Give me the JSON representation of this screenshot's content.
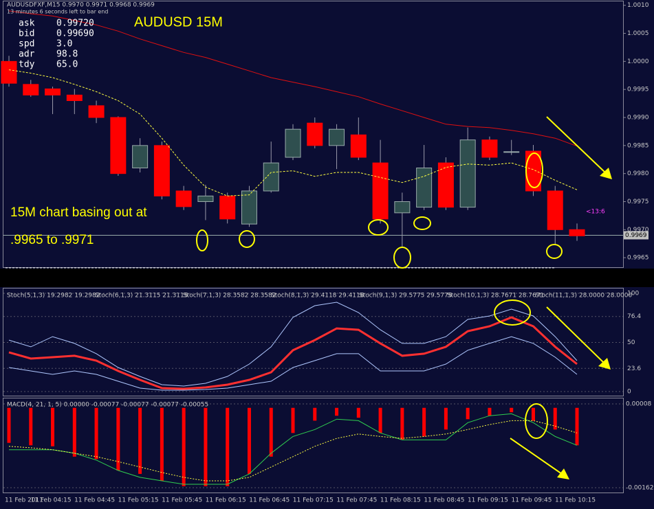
{
  "header": {
    "symbol_line": "AUDUSDFXF,M15  0.9970 0.9971 0.9968 0.9969",
    "timer": "13 minutes 6 seconds left to bar end"
  },
  "info": [
    {
      "label": "ask",
      "value": "0.99720"
    },
    {
      "label": "bid",
      "value": "0.99690"
    },
    {
      "label": "spd",
      "value": "3.0"
    },
    {
      "label": "adr",
      "value": "98.8"
    },
    {
      "label": "tdy",
      "value": "65.0"
    }
  ],
  "annotations": {
    "title": "AUDUSD 15M",
    "note_line1": "15M chart basing out at",
    "note_line2": ".9965 to .9971",
    "countdown": "<13:6"
  },
  "price_panel": {
    "ylim": [
      0.99622,
      1.00107
    ],
    "yticks": [
      {
        "value": 1.001,
        "label": "1.0010"
      },
      1.0005,
      {
        "value": 1.0,
        "label": "1.0000"
      },
      0.9995,
      {
        "value": 0.999,
        "label": "0.9990"
      },
      0.9985,
      {
        "value": 0.998,
        "label": "0.9980"
      },
      0.9975,
      {
        "value": 0.997,
        "label": "0.9970"
      },
      0.9965
    ],
    "current_price": {
      "value": 0.9969,
      "label": "0.9969"
    },
    "level": 0.99632,
    "candles": [
      {
        "open": 1.0,
        "high": 1.0001,
        "low": 0.99955,
        "close": 0.99961
      },
      {
        "open": 0.99959,
        "high": 0.99967,
        "low": 0.99937,
        "close": 0.9994
      },
      {
        "open": 0.99951,
        "high": 0.99955,
        "low": 0.99906,
        "close": 0.9994
      },
      {
        "open": 0.9994,
        "high": 0.99951,
        "low": 0.99906,
        "close": 0.9993
      },
      {
        "open": 0.99921,
        "high": 0.9993,
        "low": 0.9989,
        "close": 0.999
      },
      {
        "open": 0.999,
        "high": 0.99902,
        "low": 0.99796,
        "close": 0.998
      },
      {
        "open": 0.9981,
        "high": 0.99863,
        "low": 0.99802,
        "close": 0.9985
      },
      {
        "open": 0.9985,
        "high": 0.99857,
        "low": 0.99754,
        "close": 0.9976
      },
      {
        "open": 0.99769,
        "high": 0.99778,
        "low": 0.99735,
        "close": 0.99741
      },
      {
        "open": 0.9975,
        "high": 0.9978,
        "low": 0.99717,
        "close": 0.9976
      },
      {
        "open": 0.9976,
        "high": 0.99766,
        "low": 0.99711,
        "close": 0.99719
      },
      {
        "open": 0.9971,
        "high": 0.99778,
        "low": 0.99705,
        "close": 0.99769
      },
      {
        "open": 0.99769,
        "high": 0.99857,
        "low": 0.99766,
        "close": 0.99819
      },
      {
        "open": 0.99829,
        "high": 0.99888,
        "low": 0.99824,
        "close": 0.99879
      },
      {
        "open": 0.9989,
        "high": 0.999,
        "low": 0.99845,
        "close": 0.9985
      },
      {
        "open": 0.9985,
        "high": 0.99888,
        "low": 0.99808,
        "close": 0.99879
      },
      {
        "open": 0.99869,
        "high": 0.999,
        "low": 0.99824,
        "close": 0.99829
      },
      {
        "open": 0.99819,
        "high": 0.9986,
        "low": 0.99711,
        "close": 0.99719
      },
      {
        "open": 0.9973,
        "high": 0.99766,
        "low": 0.99668,
        "close": 0.9975
      },
      {
        "open": 0.9974,
        "high": 0.99851,
        "low": 0.99735,
        "close": 0.9981
      },
      {
        "open": 0.99819,
        "high": 0.99829,
        "low": 0.99735,
        "close": 0.9974
      },
      {
        "open": 0.9974,
        "high": 0.99882,
        "low": 0.99735,
        "close": 0.9986
      },
      {
        "open": 0.9986,
        "high": 0.99866,
        "low": 0.99824,
        "close": 0.99829
      },
      {
        "open": 0.99839,
        "high": 0.9986,
        "low": 0.99833,
        "close": 0.99839
      },
      {
        "open": 0.9984,
        "high": 0.99851,
        "low": 0.9976,
        "close": 0.99769
      },
      {
        "open": 0.99769,
        "high": 0.99778,
        "low": 0.99674,
        "close": 0.997
      },
      {
        "open": 0.997,
        "high": 0.99711,
        "low": 0.9968,
        "close": 0.99689
      }
    ],
    "up_color": "#2f4f4f",
    "down_color": "#ff0000",
    "lines": [
      {
        "color": "#e01010",
        "dash": "",
        "values": [
          1.0009,
          1.00085,
          1.00081,
          1.00073,
          1.00065,
          1.00054,
          1.0004,
          1.00028,
          1.00016,
          1.00007,
          0.99995,
          0.99983,
          0.99971,
          0.99963,
          0.99955,
          0.99946,
          0.99937,
          0.99924,
          0.99912,
          0.999,
          0.99888,
          0.99884,
          0.99882,
          0.99877,
          0.99871,
          0.99863,
          0.99849
        ]
      },
      {
        "color": "#ffff40",
        "dash": "3 2",
        "values": [
          0.99985,
          0.99979,
          0.99971,
          0.99959,
          0.99946,
          0.9993,
          0.99906,
          0.99863,
          0.99815,
          0.99776,
          0.9976,
          0.99762,
          0.99802,
          0.99805,
          0.99795,
          0.99802,
          0.99802,
          0.99793,
          0.99784,
          0.99795,
          0.99811,
          0.99817,
          0.99815,
          0.99819,
          0.99807,
          0.99788,
          0.99771
        ]
      }
    ]
  },
  "stoch_panel": {
    "labels": [
      "Stoch(5,1,3) 19.2982 19.2982",
      "Stoch(6,1,3) 21.3115 21.3115",
      "Stoch(7,1,3) 28.3582 28.3582",
      "Stoch(8,1,3) 29.4118 29.4118",
      "Stoch(9,1,3) 29.5775 29.5775",
      "Stoch(10,1,3) 28.7671 28.7671",
      "Stoch(11,1,3) 28.0000 28.0000"
    ],
    "ylim": [
      0,
      100
    ],
    "yticks": [
      100,
      76.4,
      50,
      23.6,
      0
    ],
    "series": [
      {
        "color": "#b0c8ff",
        "values": [
          52.4,
          45.5,
          55.9,
          49,
          38.5,
          24.5,
          15.4,
          7,
          5.6,
          8.4,
          15.4,
          28,
          45.5,
          75.5,
          87.4,
          90.9,
          80.4,
          62.9,
          49,
          49,
          55.9,
          73.4,
          76.9,
          83.9,
          76.9,
          55.9,
          31.5
        ]
      },
      {
        "color": "#b0c8ff",
        "values": [
          24.5,
          21,
          17.5,
          21,
          17.5,
          10.5,
          3.5,
          1.4,
          1.4,
          2.1,
          3.5,
          7,
          10.5,
          24.5,
          31.5,
          38.5,
          38.5,
          21,
          21,
          21,
          28,
          42,
          49,
          55.9,
          49,
          35,
          17.5
        ]
      },
      {
        "color": "#ff3030",
        "values": [
          39.9,
          33.6,
          35,
          36.4,
          31.5,
          21,
          11.9,
          3.5,
          2.8,
          4.2,
          7,
          11.9,
          19.6,
          42,
          52.4,
          64.3,
          62.9,
          49,
          36.4,
          38.5,
          45.5,
          61.5,
          66.4,
          75.5,
          66.4,
          45.5,
          28
        ]
      }
    ]
  },
  "macd_panel": {
    "label": "MACD(4, 21, 1, 5) 0.00000 -0.00077 -0.00077 -0.00077 -0.00055",
    "ylim": [
      -0.00162,
      8e-05
    ],
    "yticks": [
      8e-05,
      -0.00162
    ],
    "bar_color": "#ff0000",
    "values": [
      -0.00071,
      -0.00076,
      -0.00078,
      -0.00099,
      -0.00104,
      -0.00127,
      -0.00134,
      -0.00148,
      -0.00159,
      -0.00159,
      -0.00159,
      -0.00134,
      -0.00099,
      -0.00051,
      -0.00026,
      -0.00016,
      -0.0002,
      -0.00051,
      -0.00065,
      -0.00058,
      -0.00044,
      -0.00023,
      -0.00016,
      -9e-05,
      -0.00026,
      -0.00044,
      -0.00076
    ],
    "lines": [
      {
        "color": "#30d050",
        "dash": "",
        "values": [
          -0.00085,
          -0.00085,
          -0.00085,
          -0.00092,
          -0.00106,
          -0.00127,
          -0.00141,
          -0.00148,
          -0.00155,
          -0.00155,
          -0.00155,
          -0.00134,
          -0.00092,
          -0.00058,
          -0.00044,
          -0.00023,
          -0.00026,
          -0.00051,
          -0.00065,
          -0.00065,
          -0.00065,
          -0.0003,
          -0.00016,
          -0.00012,
          -0.0003,
          -0.00058,
          -0.00076
        ]
      },
      {
        "color": "#ffff40",
        "dash": "2 2",
        "values": [
          -0.00078,
          -0.00081,
          -0.00085,
          -0.00092,
          -0.00099,
          -0.00109,
          -0.0012,
          -0.00131,
          -0.00141,
          -0.00148,
          -0.00148,
          -0.00141,
          -0.0012,
          -0.00099,
          -0.00078,
          -0.00062,
          -0.00053,
          -0.00058,
          -0.00062,
          -0.00058,
          -0.00053,
          -0.00044,
          -0.00034,
          -0.00026,
          -0.00026,
          -0.00037,
          -0.00051
        ]
      }
    ]
  },
  "time_labels": [
    "11 Feb 2011",
    "11 Feb 04:15",
    "11 Feb 04:45",
    "11 Feb 05:15",
    "11 Feb 05:45",
    "11 Feb 06:15",
    "11 Feb 06:45",
    "11 Feb 07:15",
    "11 Feb 07:45",
    "11 Feb 08:15",
    "11 Feb 08:45",
    "11 Feb 09:15",
    "11 Feb 09:45",
    "11 Feb 10:15"
  ]
}
